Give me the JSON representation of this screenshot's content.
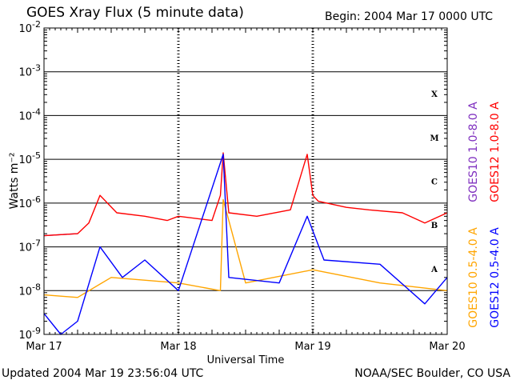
{
  "header": {
    "title": "GOES Xray Flux (5 minute data)",
    "begin": "Begin:  2004 Mar 17 0000 UTC"
  },
  "footer": {
    "updated": "Updated 2004 Mar 19 23:56:04 UTC",
    "credit": "NOAA/SEC Boulder, CO USA"
  },
  "chart_data": {
    "type": "line",
    "title": "GOES Xray Flux (5 minute data)",
    "xlabel": "Universal Time",
    "ylabel": "Watts m⁻²",
    "y_scale": "log",
    "ylim": [
      1e-09,
      0.01
    ],
    "xlim": [
      "2004-03-17",
      "2004-03-20"
    ],
    "x_ticks": [
      "Mar 17",
      "Mar 18",
      "Mar 19",
      "Mar 20"
    ],
    "y_tick_bases": [
      "10",
      "10",
      "10",
      "10",
      "10",
      "10",
      "10",
      "10"
    ],
    "y_tick_exps": [
      "-9",
      "-8",
      "-7",
      "-6",
      "-5",
      "-4",
      "-3",
      "-2"
    ],
    "flare_classes": [
      {
        "label": "A",
        "at": 1e-08
      },
      {
        "label": "B",
        "at": 1e-07
      },
      {
        "label": "C",
        "at": 1e-06
      },
      {
        "label": "M",
        "at": 1e-05
      },
      {
        "label": "X",
        "at": 0.0001
      }
    ],
    "grid": true,
    "legend_position": "right, rotated",
    "colors": {
      "goes10_long": "#7f2fbf",
      "goes12_long": "#ff0000",
      "goes10_short": "#ffa500",
      "goes12_short": "#0000ff"
    },
    "series": [
      {
        "name": "GOES10 1.0-8.0 A",
        "color": "#7f2fbf",
        "x": [
          "2004-03-17 00:00",
          "2004-03-17 06:00"
        ],
        "y": [
          1.8e-07,
          2e-07
        ]
      },
      {
        "name": "GOES12 1.0-8.0 A",
        "color": "#ff0000",
        "x": [
          "2004-03-17 00:00",
          "2004-03-17 06:00",
          "2004-03-17 08:00",
          "2004-03-17 10:00",
          "2004-03-17 13:00",
          "2004-03-17 18:00",
          "2004-03-17 22:00",
          "2004-03-18 00:00",
          "2004-03-18 06:00",
          "2004-03-18 07:30",
          "2004-03-18 08:00",
          "2004-03-18 09:00",
          "2004-03-18 14:00",
          "2004-03-18 20:00",
          "2004-03-18 23:00",
          "2004-03-19 00:00",
          "2004-03-19 01:00",
          "2004-03-19 06:00",
          "2004-03-19 10:00",
          "2004-03-19 16:00",
          "2004-03-19 20:00",
          "2004-03-20 00:00"
        ],
        "y": [
          1.8e-07,
          2e-07,
          3.5e-07,
          1.5e-06,
          6e-07,
          5e-07,
          4e-07,
          5e-07,
          4e-07,
          1.5e-06,
          1.4e-05,
          6e-07,
          5e-07,
          7e-07,
          1.3e-05,
          1.5e-06,
          1.1e-06,
          8e-07,
          7e-07,
          6e-07,
          3.5e-07,
          6e-07
        ]
      },
      {
        "name": "GOES10 0.5-4.0 A",
        "color": "#ffa500",
        "x": [
          "2004-03-17 00:00",
          "2004-03-17 06:00",
          "2004-03-17 12:00",
          "2004-03-18 00:00",
          "2004-03-18 07:30",
          "2004-03-18 08:00",
          "2004-03-18 12:00",
          "2004-03-19 00:00",
          "2004-03-19 12:00",
          "2004-03-20 00:00"
        ],
        "y": [
          8e-09,
          7e-09,
          2e-08,
          1.5e-08,
          1e-08,
          1.2e-06,
          1.5e-08,
          3e-08,
          1.5e-08,
          1e-08
        ]
      },
      {
        "name": "GOES12 0.5-4.0 A",
        "color": "#0000ff",
        "x": [
          "2004-03-17 00:00",
          "2004-03-17 03:00",
          "2004-03-17 06:00",
          "2004-03-17 10:00",
          "2004-03-17 14:00",
          "2004-03-17 18:00",
          "2004-03-18 00:00",
          "2004-03-18 08:00",
          "2004-03-18 09:00",
          "2004-03-18 18:00",
          "2004-03-18 23:00",
          "2004-03-19 02:00",
          "2004-03-19 12:00",
          "2004-03-19 20:00",
          "2004-03-20 00:00"
        ],
        "y": [
          3e-09,
          1e-09,
          2e-09,
          1e-07,
          2e-08,
          5e-08,
          1e-08,
          1.3e-05,
          2e-08,
          1.5e-08,
          5e-07,
          5e-08,
          4e-08,
          5e-09,
          2e-08
        ]
      }
    ]
  }
}
